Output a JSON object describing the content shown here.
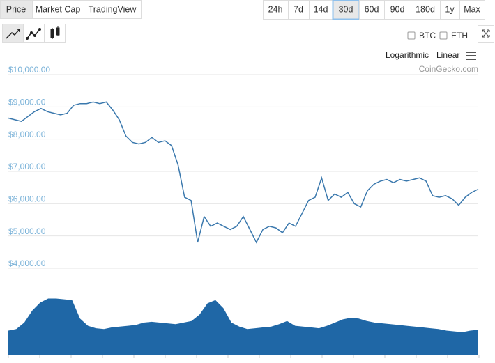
{
  "ui": {
    "tabs": [
      "Price",
      "Market Cap",
      "TradingView"
    ],
    "ranges": [
      "24h",
      "7d",
      "14d",
      "30d",
      "60d",
      "90d",
      "180d",
      "1y",
      "Max"
    ],
    "compare": [
      "BTC",
      "ETH"
    ],
    "scales": [
      "Logarithmic",
      "Linear"
    ],
    "credit": "CoinGecko.com"
  },
  "chart_data": [
    {
      "type": "line",
      "color": "#3a78ad",
      "grid": true,
      "categories": [
        null,
        null,
        null,
        null,
        null,
        null,
        null,
        null,
        null,
        null,
        null,
        null,
        null,
        null,
        null,
        null,
        null,
        null,
        null,
        null,
        null,
        null,
        null,
        null,
        null,
        null,
        null,
        null,
        null,
        null,
        null,
        null,
        null,
        null,
        null,
        null,
        null,
        null,
        null,
        null,
        null,
        null,
        null,
        null,
        null,
        null,
        null,
        null,
        null,
        null,
        null,
        null,
        null,
        null,
        null,
        null,
        null,
        null,
        null,
        null,
        null,
        null,
        null,
        null,
        null,
        null,
        null,
        null,
        null,
        null,
        null,
        null,
        null
      ],
      "values": [
        8650,
        8600,
        8550,
        8700,
        8850,
        8950,
        8850,
        8800,
        8750,
        8800,
        9050,
        9100,
        9100,
        9150,
        9100,
        9150,
        8900,
        8600,
        8100,
        7900,
        7850,
        7900,
        8050,
        7900,
        7950,
        7800,
        7200,
        6200,
        6100,
        4800,
        5600,
        5300,
        5400,
        5300,
        5200,
        5300,
        5600,
        5200,
        4800,
        5200,
        5300,
        5250,
        5100,
        5400,
        5300,
        5700,
        6100,
        6200,
        6800,
        6100,
        6300,
        6200,
        6350,
        6000,
        5900,
        6400,
        6600,
        6700,
        6750,
        6650,
        6750,
        6700,
        6750,
        6800,
        6700,
        6250,
        6200,
        6250,
        6150,
        5950,
        6200,
        6350,
        6450
      ],
      "ylim": [
        4000,
        10000
      ],
      "yticks": [
        {
          "value": 4000,
          "label": "$4,000.00"
        },
        {
          "value": 5000,
          "label": "$5,000.00"
        },
        {
          "value": 6000,
          "label": "$6,000.00"
        },
        {
          "value": 7000,
          "label": "$7,000.00"
        },
        {
          "value": 8000,
          "label": "$8,000.00"
        },
        {
          "value": 9000,
          "label": "$9,000.00"
        },
        {
          "value": 10000,
          "label": "$10,000.00"
        }
      ]
    },
    {
      "type": "area",
      "color": "#1f67a6",
      "values": [
        30,
        32,
        40,
        55,
        65,
        70,
        70,
        69,
        68,
        45,
        36,
        33,
        32,
        34,
        35,
        36,
        37,
        40,
        41,
        40,
        39,
        38,
        40,
        42,
        50,
        64,
        68,
        58,
        40,
        35,
        32,
        33,
        34,
        35,
        38,
        42,
        36,
        35,
        34,
        33,
        36,
        40,
        44,
        46,
        45,
        42,
        40,
        39,
        38,
        37,
        36,
        35,
        34,
        33,
        32,
        30,
        29,
        28,
        30,
        31
      ],
      "ylim": [
        0,
        100
      ]
    }
  ]
}
